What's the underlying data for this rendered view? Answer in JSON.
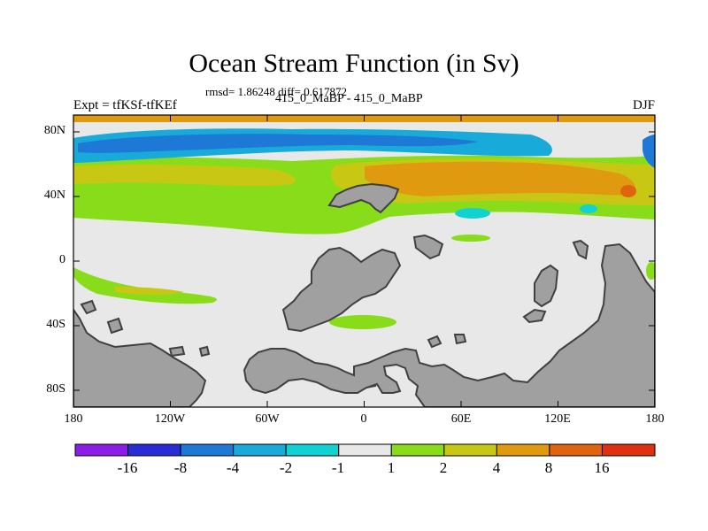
{
  "title": "Ocean Stream Function (in Sv)",
  "stats_line": "rmsd= 1.86248 diff= 0.617872",
  "experiment_label": "Expt = tfKSf-tfKEf",
  "subtitle": "415_0_MaBP - 415_0_MaBP",
  "season": "DJF",
  "lat_labels": [
    "80N",
    "40N",
    "0",
    "40S",
    "80S"
  ],
  "lon_labels": [
    "180",
    "120W",
    "60W",
    "0",
    "60E",
    "120E",
    "180"
  ],
  "colorbar": {
    "labels": [
      "-16",
      "-8",
      "-4",
      "-2",
      "-1",
      "1",
      "2",
      "4",
      "8",
      "16"
    ],
    "colors": [
      "#8a1ee6",
      "#2a2ad6",
      "#1e78d6",
      "#18aad9",
      "#10d2d2",
      "#e8e8e8",
      "#88dc1a",
      "#c8c814",
      "#e09a10",
      "#e06410",
      "#e03010"
    ]
  },
  "land_color": "#a0a0a0",
  "ocean_color": "#e8e8e8"
}
